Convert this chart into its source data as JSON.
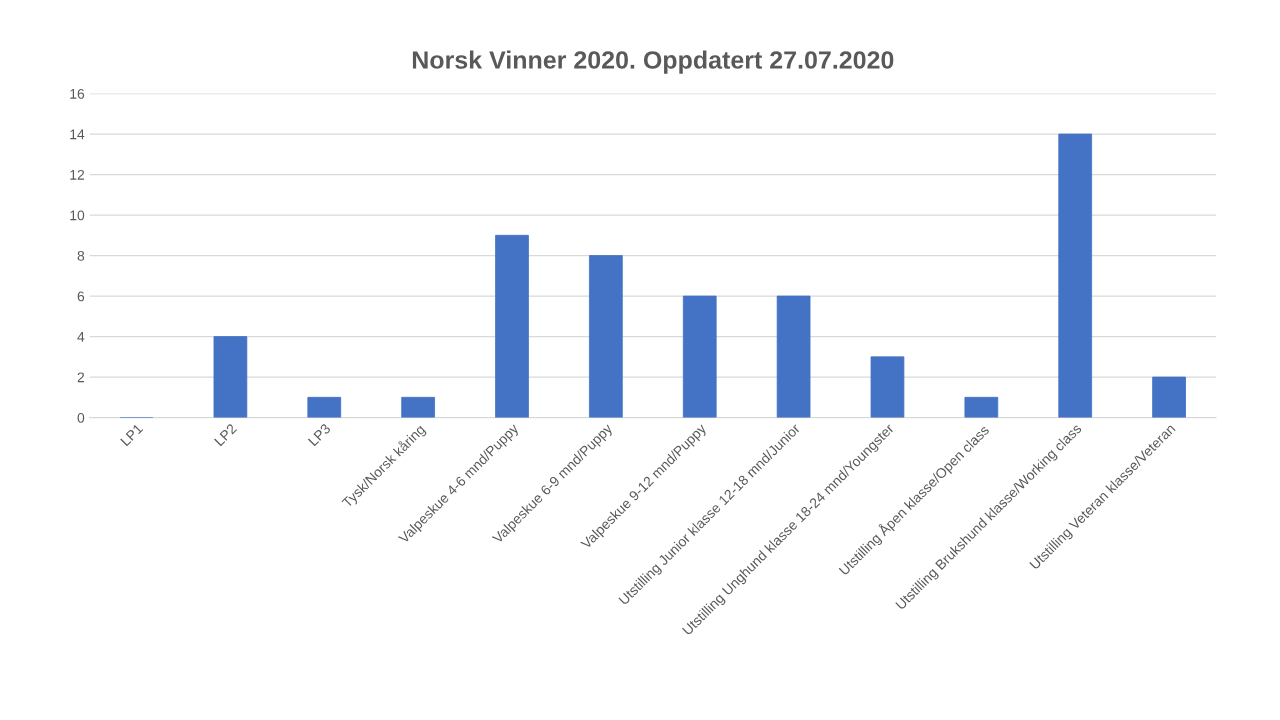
{
  "chart_data": {
    "type": "bar",
    "title": "Norsk Vinner 2020. Oppdatert 27.07.2020",
    "categories": [
      "LP1",
      "LP2",
      "LP3",
      "Tysk/Norsk kåring",
      "Valpeskue 4-6 mnd/Puppy",
      "Valpeskue 6-9 mnd/Puppy",
      "Valpeskue 9-12 mnd/Puppy",
      "Utstilling Junior klasse 12-18 mnd/Junior",
      "Utstilling Unghund klasse 18-24 mnd/Youngster",
      "Utstilling Åpen klasse/Open class",
      "Utstilling Brukshund klasse/Working class",
      "Utstilling Veteran klasse/Veteran"
    ],
    "values": [
      0,
      4,
      1,
      1,
      9,
      8,
      6,
      6,
      3,
      1,
      14,
      2
    ],
    "color": "#4472c4",
    "ylim": [
      0,
      16
    ],
    "yticks": [
      0,
      2,
      4,
      6,
      8,
      10,
      12,
      14,
      16
    ],
    "grid": "y",
    "legend": false
  }
}
